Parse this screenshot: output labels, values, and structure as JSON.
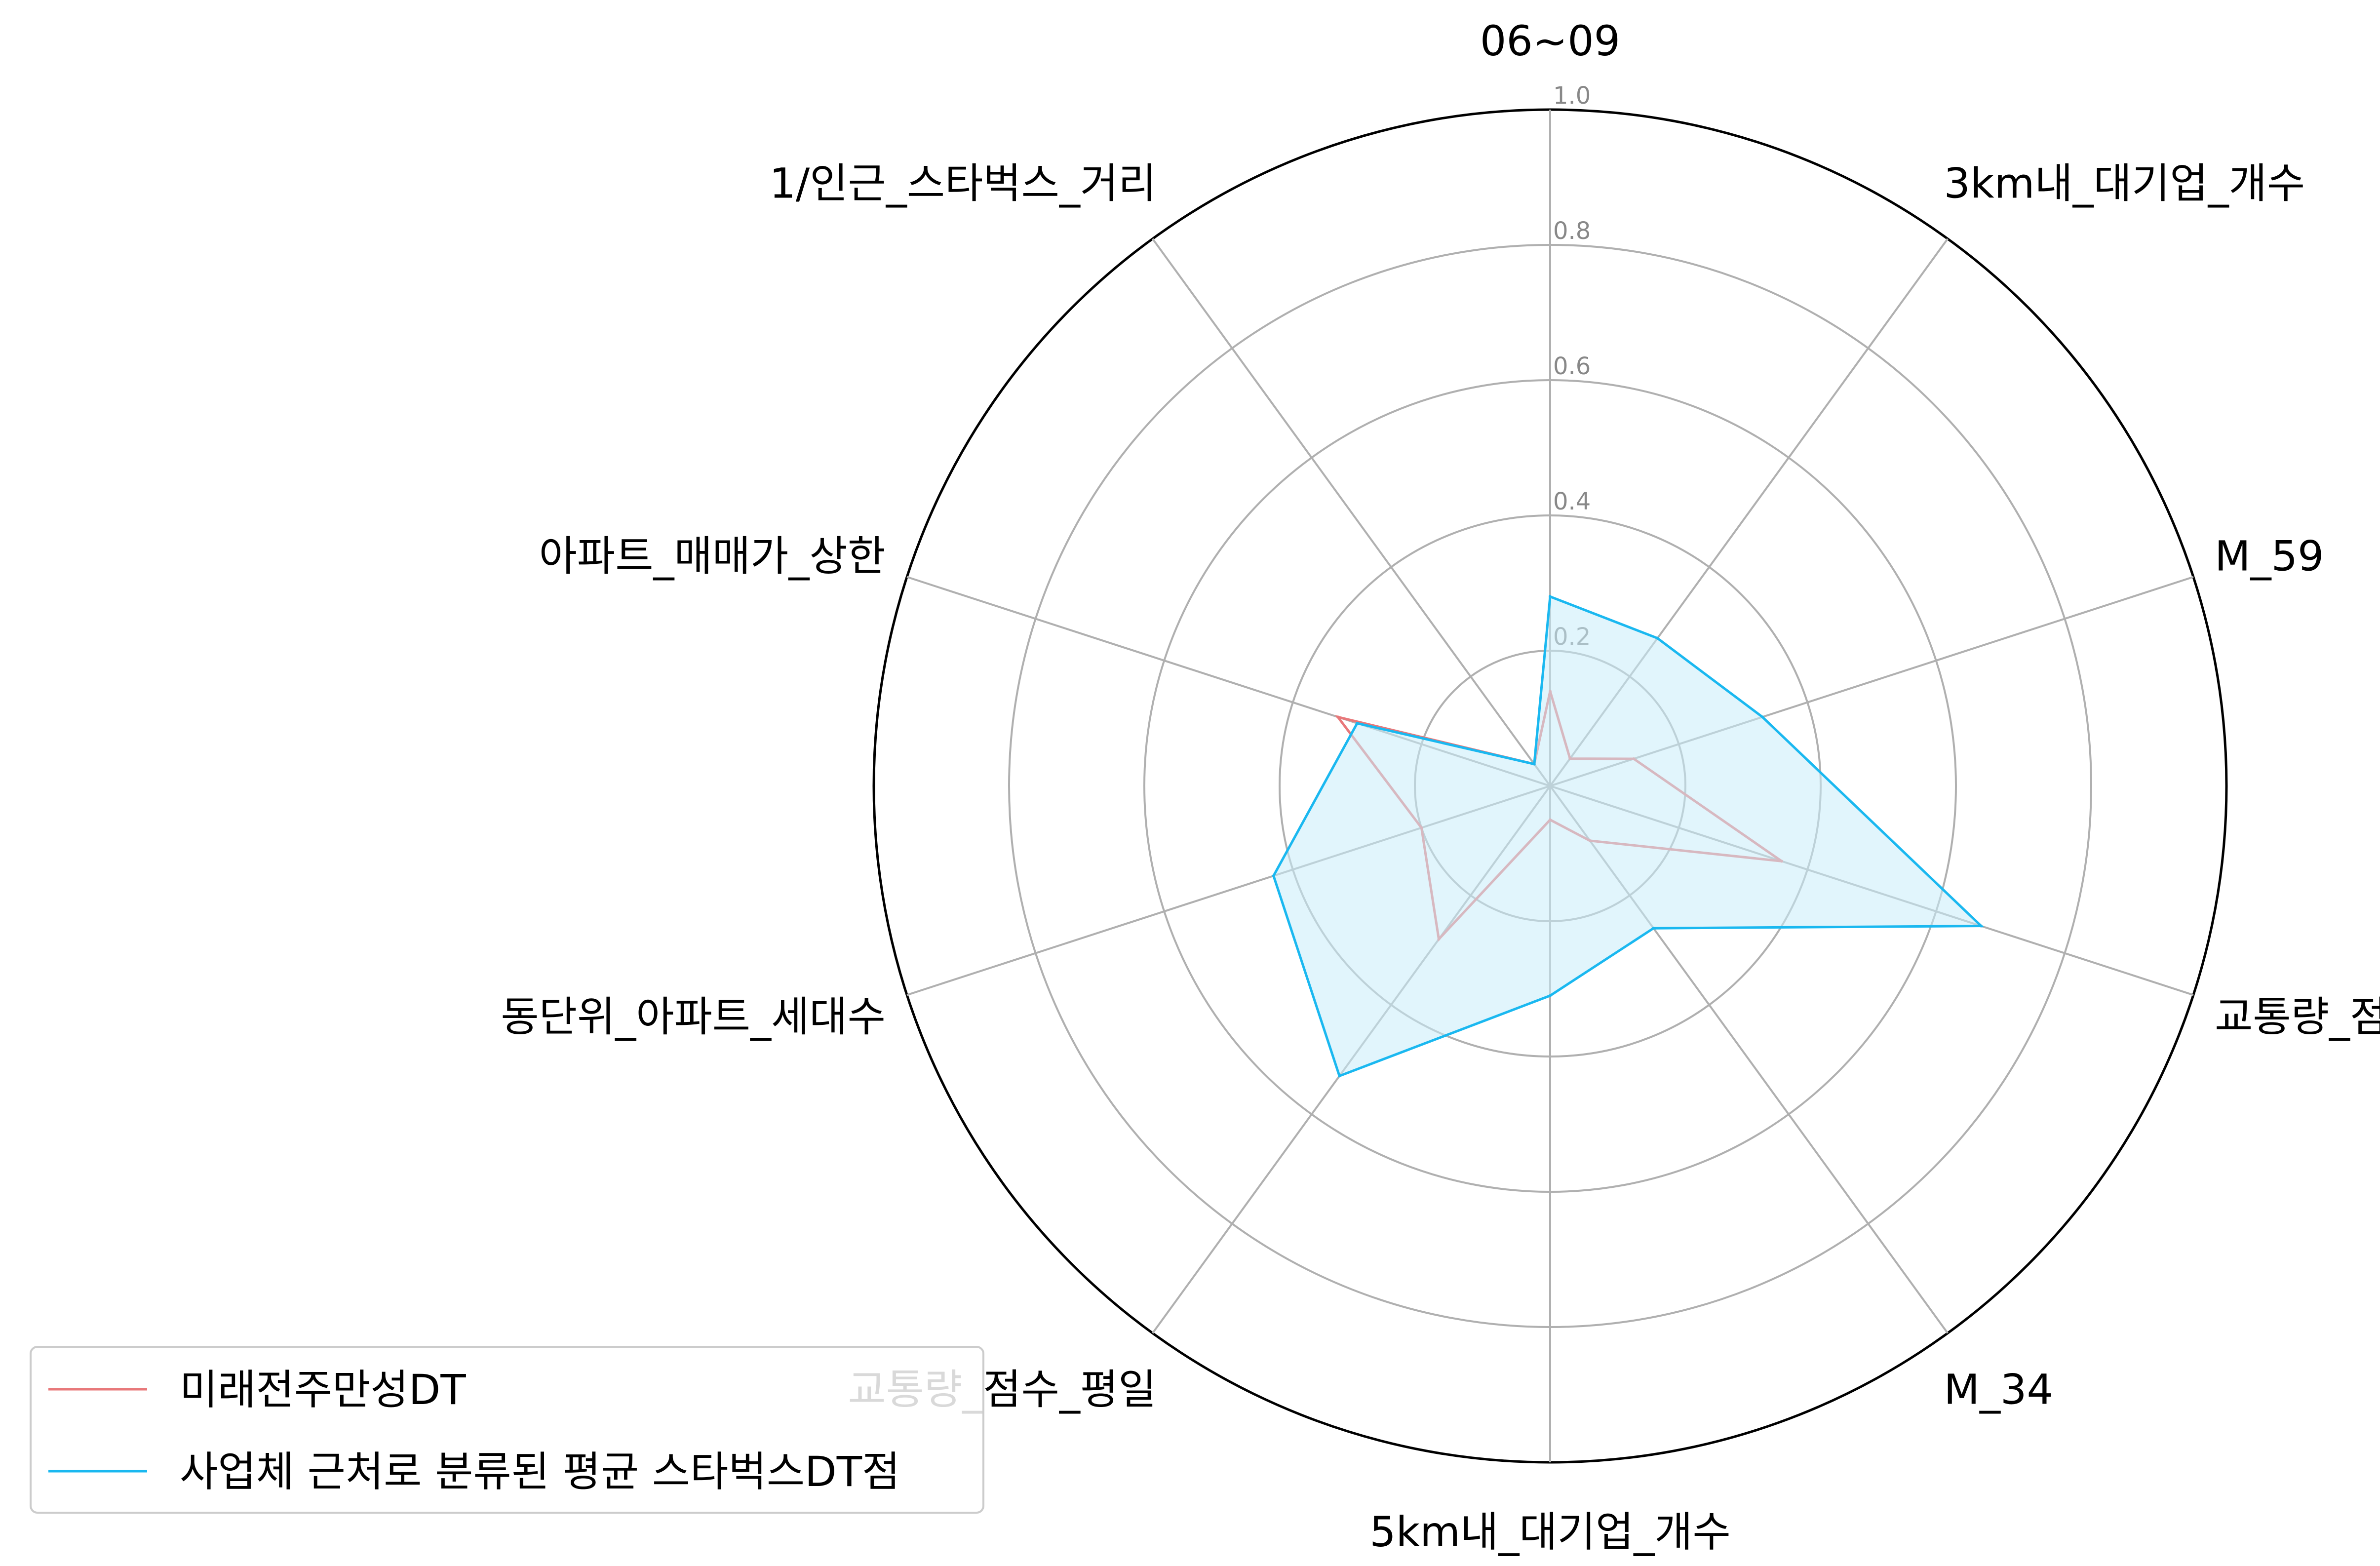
{
  "chart_data": {
    "type": "radar",
    "axes": [
      "06~09",
      "3km내_대기업_개수",
      "M_59",
      "교통량_점수",
      "M_34",
      "5km내_대기업_개수",
      "교통량_점수_평일",
      "동단위_아파트_세대수",
      "아파트_매매가_상한",
      "1/인근_스타벅스_거리"
    ],
    "rlim": [
      0,
      1.0
    ],
    "rticks": [
      "0.2",
      "0.4",
      "0.6",
      "0.8",
      "1.0"
    ],
    "rtick_values": [
      0.2,
      0.4,
      0.6,
      0.8,
      1.0
    ],
    "grid": true,
    "legend_position": "lower-left",
    "series": [
      {
        "name": "미래전주만성DT",
        "color": "#e8787a",
        "fill": false,
        "values": [
          0.14,
          0.05,
          0.13,
          0.36,
          0.1,
          0.05,
          0.28,
          0.2,
          0.33,
          0.04
        ]
      },
      {
        "name": "사업체 근처로 분류된 평균 스타벅스DT점",
        "color": "#1ab8f0",
        "fill": true,
        "fill_color": "#c8ecfa",
        "values": [
          0.28,
          0.27,
          0.33,
          0.67,
          0.26,
          0.31,
          0.53,
          0.43,
          0.3,
          0.04
        ]
      }
    ]
  }
}
